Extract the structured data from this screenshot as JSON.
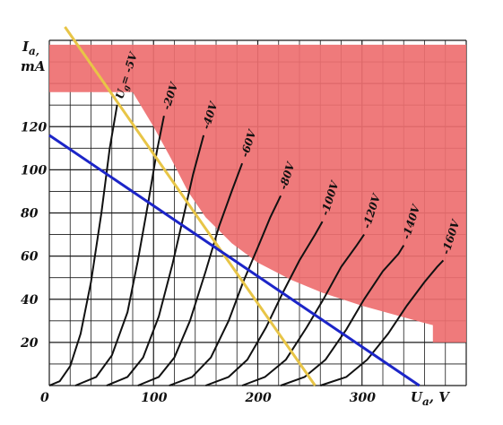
{
  "chart_data": {
    "type": "line",
    "title": "",
    "xlabel": "U",
    "xlabel_sub": "a",
    "xunit": ", V",
    "ylabel_top": "I",
    "ylabel_sub": "a,",
    "ylabel_unit": "mA",
    "xlim": [
      0,
      400
    ],
    "ylim": [
      0,
      160
    ],
    "grid": true,
    "x_ticks": [
      0,
      100,
      200,
      300
    ],
    "y_ticks": [
      20,
      40,
      60,
      80,
      100,
      120
    ],
    "colors": {
      "grid": "#1a1a1a",
      "forbidden_region": "#ee6f70",
      "load_line_yellow": "#e8c547",
      "load_line_blue": "#1c25c8",
      "curves": "#111111"
    },
    "forbidden_region_boundary": [
      [
        0,
        158
      ],
      [
        0,
        136
      ],
      [
        80,
        136
      ],
      [
        100,
        120
      ],
      [
        117,
        105
      ],
      [
        133,
        90
      ],
      [
        150,
        78
      ],
      [
        175,
        66
      ],
      [
        200,
        57
      ],
      [
        232,
        49
      ],
      [
        262,
        43
      ],
      [
        300,
        37
      ],
      [
        330,
        33
      ],
      [
        360,
        29
      ],
      [
        368,
        28
      ],
      [
        368,
        20
      ],
      [
        400,
        20
      ],
      [
        400,
        158
      ]
    ],
    "load_lines": [
      {
        "color": "yellow",
        "points": [
          [
            0,
            157
          ],
          [
            255,
            0
          ]
        ]
      },
      {
        "color": "blue",
        "points": [
          [
            0,
            116
          ],
          [
            355,
            0
          ]
        ]
      }
    ],
    "curves": [
      {
        "label": "U",
        "label_sub": "g",
        "label_value": "= -5V",
        "points": [
          [
            0,
            0
          ],
          [
            10,
            2
          ],
          [
            20,
            9
          ],
          [
            30,
            24
          ],
          [
            40,
            48
          ],
          [
            50,
            80
          ],
          [
            58,
            110
          ],
          [
            65,
            130
          ]
        ]
      },
      {
        "label": "-20V",
        "points": [
          [
            25,
            0
          ],
          [
            45,
            4
          ],
          [
            60,
            14
          ],
          [
            75,
            34
          ],
          [
            85,
            58
          ],
          [
            95,
            85
          ],
          [
            103,
            108
          ],
          [
            110,
            125
          ]
        ]
      },
      {
        "label": "-40V",
        "points": [
          [
            55,
            0
          ],
          [
            75,
            4
          ],
          [
            90,
            13
          ],
          [
            105,
            32
          ],
          [
            118,
            56
          ],
          [
            130,
            81
          ],
          [
            138,
            98
          ],
          [
            148,
            116
          ]
        ]
      },
      {
        "label": "-60V",
        "points": [
          [
            85,
            0
          ],
          [
            105,
            4
          ],
          [
            120,
            13
          ],
          [
            135,
            30
          ],
          [
            150,
            53
          ],
          [
            163,
            74
          ],
          [
            175,
            90
          ],
          [
            185,
            103
          ]
        ]
      },
      {
        "label": "-80V",
        "points": [
          [
            115,
            0
          ],
          [
            137,
            4
          ],
          [
            155,
            13
          ],
          [
            172,
            30
          ],
          [
            186,
            48
          ],
          [
            200,
            64
          ],
          [
            212,
            78
          ],
          [
            222,
            88
          ]
        ]
      },
      {
        "label": "-100V",
        "points": [
          [
            150,
            0
          ],
          [
            172,
            4
          ],
          [
            190,
            12
          ],
          [
            208,
            27
          ],
          [
            224,
            43
          ],
          [
            240,
            58
          ],
          [
            255,
            70
          ],
          [
            262,
            76
          ]
        ]
      },
      {
        "label": "-120V",
        "points": [
          [
            185,
            0
          ],
          [
            207,
            4
          ],
          [
            227,
            12
          ],
          [
            247,
            27
          ],
          [
            263,
            40
          ],
          [
            280,
            55
          ],
          [
            295,
            65
          ],
          [
            302,
            70
          ]
        ]
      },
      {
        "label": "-140V",
        "points": [
          [
            222,
            0
          ],
          [
            245,
            4
          ],
          [
            265,
            12
          ],
          [
            285,
            26
          ],
          [
            302,
            40
          ],
          [
            320,
            53
          ],
          [
            335,
            61
          ],
          [
            340,
            65
          ]
        ]
      },
      {
        "label": "-160V",
        "points": [
          [
            260,
            0
          ],
          [
            285,
            4
          ],
          [
            305,
            12
          ],
          [
            325,
            24
          ],
          [
            343,
            37
          ],
          [
            360,
            48
          ],
          [
            372,
            55
          ],
          [
            378,
            58
          ]
        ]
      }
    ]
  }
}
